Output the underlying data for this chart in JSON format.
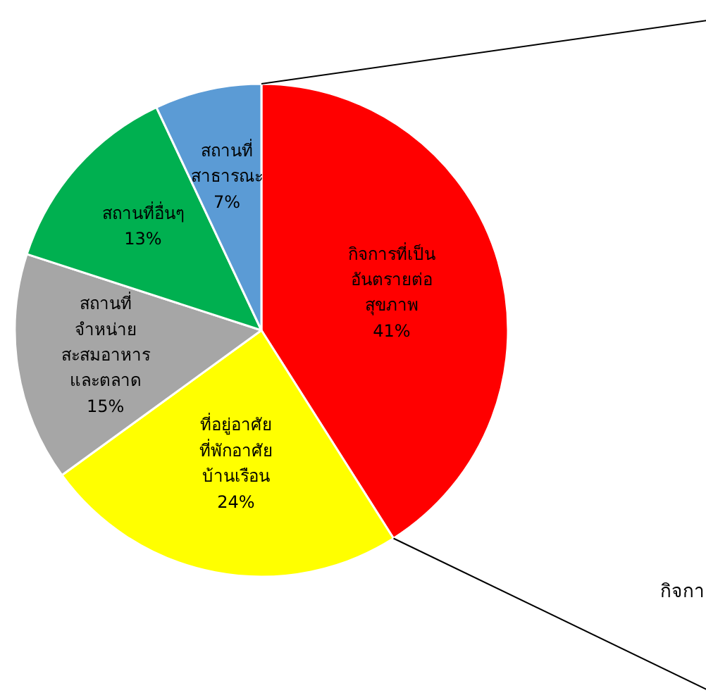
{
  "chart_data": {
    "type": "pie",
    "categories": [
      "กิจการที่เป็น\nอันตรายต่อ\nสุขภาพ",
      "ที่อยู่อาศัย\nที่พักอาศัย\nบ้านเรือน",
      "สถานที่\nจำหน่าย\nสะสมอาหาร\nและตลาด",
      "สถานที่อื่นๆ",
      "สถานที่\nสาธารณะ"
    ],
    "values": [
      41,
      24,
      15,
      13,
      7
    ],
    "colors": [
      "#ff0000",
      "#ffff00",
      "#a6a6a6",
      "#00b050",
      "#5b9bd5"
    ],
    "value_labels": [
      "41%",
      "24%",
      "15%",
      "13%",
      "7%"
    ],
    "annotations": [
      "กิจกา"
    ]
  }
}
